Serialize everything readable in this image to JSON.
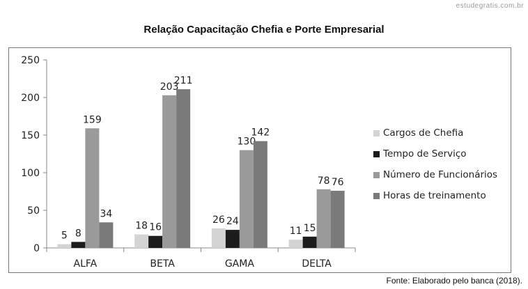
{
  "watermark": "estudegratis.com.br",
  "source": "Fonte: Elaborado pelo banca (2018).",
  "chart_data": {
    "type": "bar",
    "title": "Relação Capacitação Chefia e Porte Empresarial",
    "xlabel": "",
    "ylabel": "",
    "ylim": [
      0,
      250
    ],
    "yticks": [
      0,
      50,
      100,
      150,
      200,
      250
    ],
    "grid": false,
    "legend_position": "right",
    "categories": [
      "ALFA",
      "BETA",
      "GAMA",
      "DELTA"
    ],
    "series": [
      {
        "name": "Cargos de Chefia",
        "color": "#d4d4d4",
        "values": [
          5,
          18,
          26,
          11
        ]
      },
      {
        "name": "Tempo de Serviço",
        "color": "#1c1c1c",
        "values": [
          8,
          16,
          24,
          15
        ]
      },
      {
        "name": "Número de Funcionários",
        "color": "#9a9a9a",
        "values": [
          159,
          203,
          130,
          78
        ]
      },
      {
        "name": "Horas de treinamento",
        "color": "#7a7a7a",
        "values": [
          34,
          211,
          142,
          76
        ]
      }
    ]
  }
}
